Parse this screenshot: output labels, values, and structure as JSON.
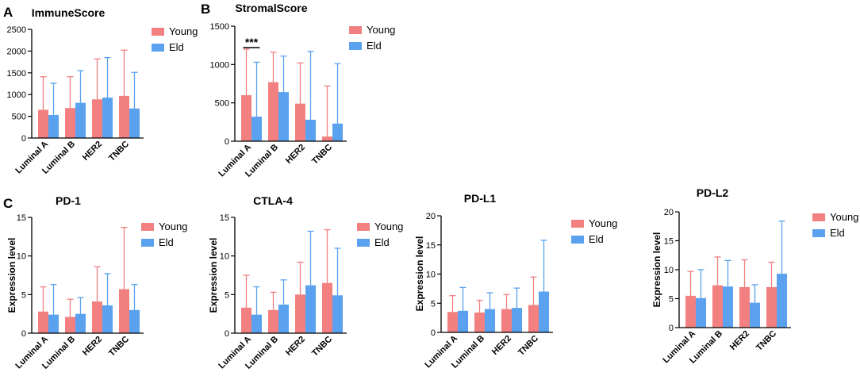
{
  "series_names": [
    "Young",
    "Eld"
  ],
  "colors": {
    "young": "#f28080",
    "eld": "#5aa2f0",
    "axis": "#000000"
  },
  "panel_letters": [
    "A",
    "B",
    "C"
  ],
  "chart_data": [
    {
      "type": "bar",
      "panel": "A",
      "title": "ImmuneScore",
      "ylabel": "",
      "ylim": [
        0,
        2500
      ],
      "yticks": [
        0,
        500,
        1000,
        1500,
        2000,
        2500
      ],
      "categories": [
        "Luminal A",
        "Luminal B",
        "HER2",
        "TNBC"
      ],
      "series": [
        {
          "name": "Young",
          "values": [
            650,
            690,
            890,
            970
          ],
          "errors": [
            760,
            720,
            930,
            1050
          ]
        },
        {
          "name": "Eld",
          "values": [
            530,
            810,
            930,
            680
          ],
          "errors": [
            730,
            740,
            920,
            830
          ]
        }
      ],
      "significance": []
    },
    {
      "type": "bar",
      "panel": "B",
      "title": "StromalScore",
      "ylabel": "",
      "ylim": [
        0,
        1500
      ],
      "yticks": [
        0,
        500,
        1000,
        1500
      ],
      "categories": [
        "Luminal A",
        "Luminal B",
        "HER2",
        "TNBC"
      ],
      "series": [
        {
          "name": "Young",
          "values": [
            600,
            770,
            490,
            60
          ],
          "errors": [
            600,
            390,
            530,
            660
          ]
        },
        {
          "name": "Eld",
          "values": [
            320,
            640,
            280,
            230
          ],
          "errors": [
            710,
            470,
            890,
            780
          ]
        }
      ],
      "significance": [
        {
          "category": "Luminal A",
          "label": "***"
        }
      ]
    },
    {
      "type": "bar",
      "panel": "C",
      "title": "PD-1",
      "ylabel": "Expression level",
      "ylim": [
        0,
        15
      ],
      "yticks": [
        0,
        5,
        10,
        15
      ],
      "categories": [
        "Luminal A",
        "Luminal B",
        "HER2",
        "TNBC"
      ],
      "series": [
        {
          "name": "Young",
          "values": [
            2.8,
            2.1,
            4.1,
            5.7
          ],
          "errors": [
            3.2,
            2.3,
            4.5,
            8.0
          ]
        },
        {
          "name": "Eld",
          "values": [
            2.4,
            2.5,
            3.6,
            3.0
          ],
          "errors": [
            3.9,
            2.1,
            4.1,
            3.3
          ]
        }
      ],
      "significance": []
    },
    {
      "type": "bar",
      "panel": "",
      "title": "CTLA-4",
      "ylabel": "Expression level",
      "ylim": [
        0,
        15
      ],
      "yticks": [
        0,
        5,
        10,
        15
      ],
      "categories": [
        "Luminal A",
        "Luminal B",
        "HER2",
        "TNBC"
      ],
      "series": [
        {
          "name": "Young",
          "values": [
            3.3,
            3.0,
            5.0,
            6.5
          ],
          "errors": [
            4.2,
            2.3,
            4.2,
            6.9
          ]
        },
        {
          "name": "Eld",
          "values": [
            2.4,
            3.7,
            6.2,
            4.9
          ],
          "errors": [
            3.6,
            3.2,
            7.0,
            6.1
          ]
        }
      ],
      "significance": []
    },
    {
      "type": "bar",
      "panel": "",
      "title": "PD-L1",
      "ylabel": "Expression level",
      "ylim": [
        0,
        20
      ],
      "yticks": [
        0,
        5,
        10,
        15,
        20
      ],
      "categories": [
        "Luminal A",
        "Luminal B",
        "HER2",
        "TNBC"
      ],
      "series": [
        {
          "name": "Young",
          "values": [
            3.5,
            3.4,
            4.0,
            4.7
          ],
          "errors": [
            2.8,
            2.1,
            2.5,
            4.8
          ]
        },
        {
          "name": "Eld",
          "values": [
            3.7,
            4.0,
            4.2,
            7.0
          ],
          "errors": [
            4.0,
            2.8,
            3.4,
            8.8
          ]
        }
      ],
      "significance": []
    },
    {
      "type": "bar",
      "panel": "",
      "title": "PD-L2",
      "ylabel": "Expression level",
      "ylim": [
        0,
        20
      ],
      "yticks": [
        0,
        5,
        10,
        15,
        20
      ],
      "categories": [
        "Luminal A",
        "Luminal B",
        "HER2",
        "TNBC"
      ],
      "series": [
        {
          "name": "Young",
          "values": [
            5.5,
            7.3,
            7.0,
            7.0
          ],
          "errors": [
            4.2,
            4.9,
            4.7,
            4.3
          ]
        },
        {
          "name": "Eld",
          "values": [
            5.1,
            7.1,
            4.3,
            9.3
          ],
          "errors": [
            4.9,
            4.5,
            3.1,
            9.1
          ]
        }
      ],
      "significance": []
    }
  ]
}
